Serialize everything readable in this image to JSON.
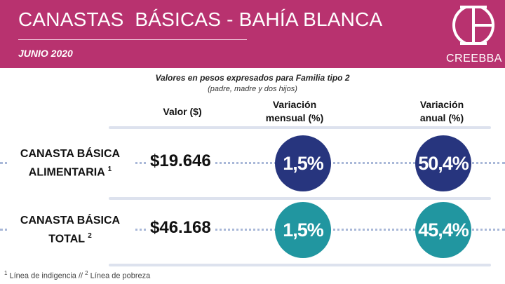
{
  "header": {
    "title": "CANASTAS  BÁSICAS - BAHÍA BLANCA",
    "subtitle": "JUNIO 2020",
    "logo_text": "CREEBBA"
  },
  "notes": {
    "line1": "Valores en pesos expresados para Familia tipo 2",
    "line2": "(padre, madre y dos hijos)"
  },
  "columns": {
    "valor": "Valor ($)",
    "mensual_1": "Variación",
    "mensual_2": "mensual (%)",
    "anual_1": "Variación",
    "anual_2": "anual (%)"
  },
  "rows": [
    {
      "label_1": "CANASTA BÁSICA",
      "label_2": "ALIMENTARIA",
      "sup": "1",
      "valor": "$19.646",
      "mensual": "1,5%",
      "anual": "50,4%"
    },
    {
      "label_1": "CANASTA BÁSICA",
      "label_2": "TOTAL",
      "sup": "2",
      "valor": "$46.168",
      "mensual": "1,5%",
      "anual": "45,4%"
    }
  ],
  "footer": {
    "sup1": "1",
    "text1": " Línea de indigencia   //   ",
    "sup2": "2",
    "text2": " Línea de pobreza"
  },
  "colors": {
    "brand_magenta": "#b8326f",
    "alimentaria_circle": "#27357e",
    "total_circle": "#2196a0"
  }
}
